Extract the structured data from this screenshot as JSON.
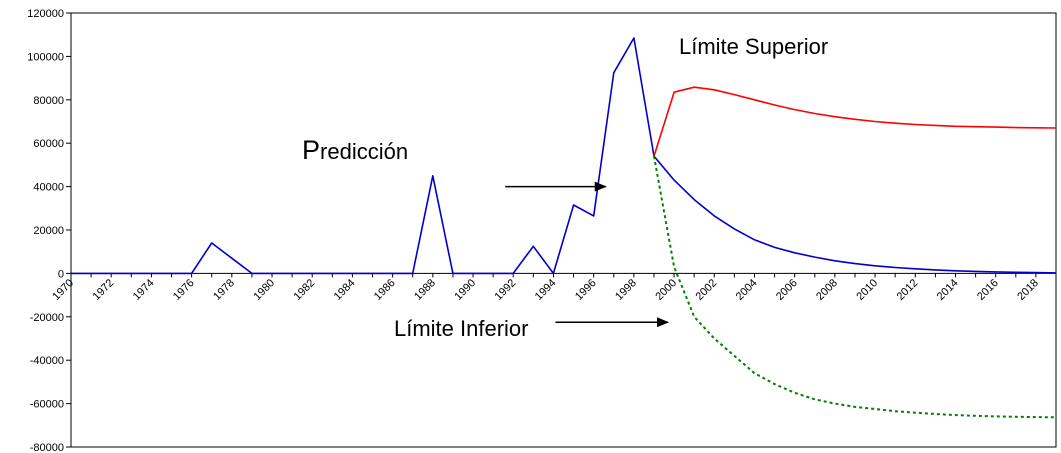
{
  "chart_data": {
    "type": "line",
    "x": [
      1970,
      1971,
      1972,
      1973,
      1974,
      1975,
      1976,
      1977,
      1978,
      1979,
      1980,
      1981,
      1982,
      1983,
      1984,
      1985,
      1986,
      1987,
      1988,
      1989,
      1990,
      1991,
      1992,
      1993,
      1994,
      1995,
      1996,
      1997,
      1998,
      1999,
      2000,
      2001,
      2002,
      2003,
      2004,
      2005,
      2006,
      2007,
      2008,
      2009,
      2010,
      2011,
      2012,
      2013,
      2014,
      2015,
      2016,
      2017,
      2018,
      2019
    ],
    "x_tick_labels": [
      "1970",
      "1972",
      "1974",
      "1976",
      "1978",
      "1980",
      "1982",
      "1984",
      "1986",
      "1988",
      "1990",
      "1992",
      "1994",
      "1996",
      "1998",
      "2000",
      "2002",
      "2004",
      "2006",
      "2008",
      "2010",
      "2012",
      "2014",
      "2016",
      "2018"
    ],
    "ylim": [
      -80000,
      120000
    ],
    "y_ticks": [
      -80000,
      -60000,
      -40000,
      -20000,
      0,
      20000,
      40000,
      60000,
      80000,
      100000,
      120000
    ],
    "y_tick_labels": [
      "-80000",
      "-60000",
      "-40000",
      "-20000",
      "0",
      "20000",
      "40000",
      "60000",
      "80000",
      "100000",
      "120000"
    ],
    "series": [
      {
        "color": "#0000cc",
        "style": "solid",
        "x": [
          1970,
          1971,
          1972,
          1973,
          1974,
          1975,
          1976,
          1977,
          1978,
          1979,
          1980,
          1981,
          1982,
          1983,
          1984,
          1985,
          1986,
          1987,
          1988,
          1989,
          1990,
          1991,
          1992,
          1993,
          1994,
          1995,
          1996,
          1997,
          1998,
          1999,
          2000,
          2001,
          2002,
          2003,
          2004,
          2005,
          2006,
          2007,
          2008,
          2009,
          2010,
          2011,
          2012,
          2013,
          2014,
          2015,
          2016,
          2017,
          2018,
          2019
        ],
        "values": [
          0,
          0,
          0,
          0,
          0,
          0,
          0,
          14000,
          7000,
          0,
          0,
          0,
          0,
          0,
          0,
          0,
          0,
          0,
          45000,
          0,
          0,
          0,
          0,
          12500,
          0,
          31500,
          26500,
          92500,
          108500,
          54000,
          43000,
          34000,
          26500,
          20500,
          15500,
          12000,
          9500,
          7500,
          5800,
          4500,
          3500,
          2700,
          2100,
          1600,
          1200,
          900,
          700,
          500,
          350,
          250
        ]
      },
      {
        "color": "#ff0000",
        "style": "solid",
        "x": [
          1999,
          2000,
          2001,
          2002,
          2003,
          2004,
          2005,
          2006,
          2007,
          2008,
          2009,
          2010,
          2011,
          2012,
          2013,
          2014,
          2015,
          2016,
          2017,
          2018,
          2019
        ],
        "values": [
          54000,
          83500,
          85800,
          84600,
          82400,
          80000,
          77600,
          75500,
          73700,
          72200,
          71000,
          70000,
          69200,
          68600,
          68200,
          67800,
          67600,
          67400,
          67200,
          67100,
          67000
        ]
      },
      {
        "color": "#008000",
        "style": "dotted",
        "x": [
          1999,
          2000,
          2001,
          2002,
          2003,
          2004,
          2005,
          2006,
          2007,
          2008,
          2009,
          2010,
          2011,
          2012,
          2013,
          2014,
          2015,
          2016,
          2017,
          2018,
          2019
        ],
        "values": [
          54000,
          3000,
          -20000,
          -30000,
          -38000,
          -46000,
          -51000,
          -55000,
          -58000,
          -60000,
          -61500,
          -62500,
          -63500,
          -64200,
          -64800,
          -65300,
          -65600,
          -65900,
          -66100,
          -66200,
          -66300
        ]
      }
    ],
    "annotations": {
      "prediccion_cap": "P",
      "prediccion_rest": "redicción",
      "superior": "Límite Superior",
      "inferior": "Límite Inferior"
    },
    "arrows": [
      {
        "from": [
          1991.6,
          40000
        ],
        "to": [
          1996.6,
          40000
        ]
      },
      {
        "from": [
          1994.1,
          -22500
        ],
        "to": [
          1999.7,
          -22500
        ]
      }
    ],
    "grid": false,
    "legend": "none"
  }
}
